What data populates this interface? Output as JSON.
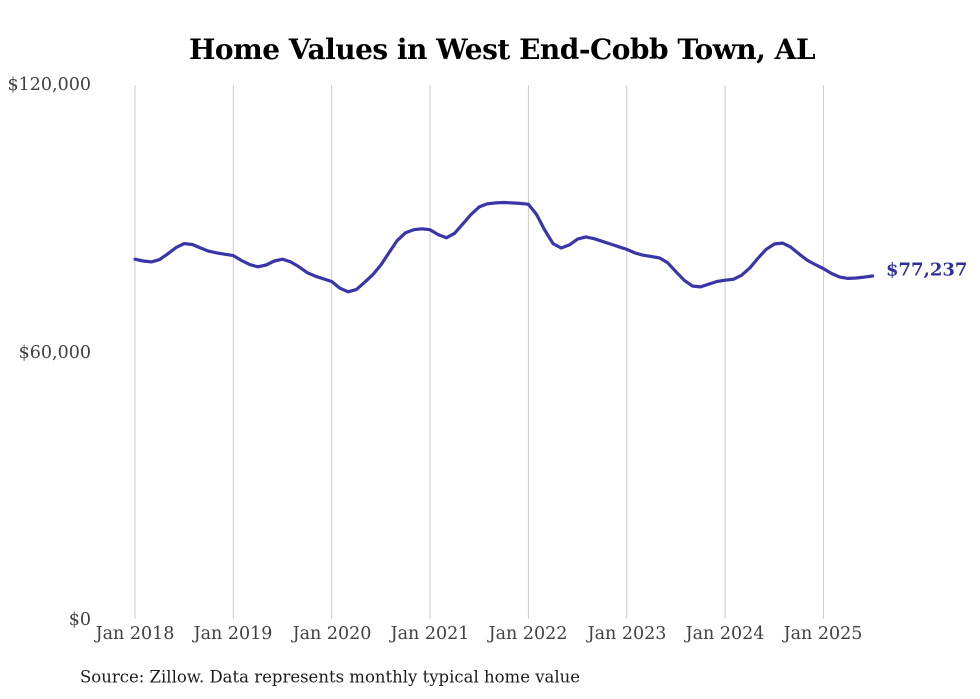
{
  "chart": {
    "title": "Home Values in West End-Cobb Town, AL",
    "current_value_label": "$77,237",
    "source": "Source: Zillow. Data represents monthly typical home value",
    "y_ticks": [
      {
        "label": "$120,000",
        "value": 120000
      },
      {
        "label": "$60,000",
        "value": 60000
      },
      {
        "label": "$0",
        "value": 0
      }
    ],
    "x_ticks": [
      "Jan 2018",
      "Jan 2019",
      "Jan 2020",
      "Jan 2021",
      "Jan 2022",
      "Jan 2023",
      "Jan 2024",
      "Jan 2025"
    ],
    "colors": {
      "line": "#3a35a8",
      "value_label": "#2f2fa2",
      "gridline": "#cccccc",
      "tick_text": "#414141",
      "title_text": "#000000",
      "source_text": "#1c1c1c"
    }
  },
  "chart_data": {
    "type": "line",
    "title": "Home Values in West End-Cobb Town, AL",
    "xlabel": "",
    "ylabel": "",
    "ylim": [
      0,
      120000
    ],
    "y_tick_values": [
      0,
      60000,
      120000
    ],
    "x_tick_labels": [
      "Jan 2018",
      "Jan 2019",
      "Jan 2020",
      "Jan 2021",
      "Jan 2022",
      "Jan 2023",
      "Jan 2024",
      "Jan 2025"
    ],
    "grid": "vertical-only",
    "legend": "none",
    "frequency": "monthly",
    "series_name": "Typical home value",
    "final_value": 77237,
    "end_label": "$77,237",
    "x": [
      "2018-01",
      "2018-02",
      "2018-03",
      "2018-04",
      "2018-05",
      "2018-06",
      "2018-07",
      "2018-08",
      "2018-09",
      "2018-10",
      "2018-11",
      "2018-12",
      "2019-01",
      "2019-02",
      "2019-03",
      "2019-04",
      "2019-05",
      "2019-06",
      "2019-07",
      "2019-08",
      "2019-09",
      "2019-10",
      "2019-11",
      "2019-12",
      "2020-01",
      "2020-02",
      "2020-03",
      "2020-04",
      "2020-05",
      "2020-06",
      "2020-07",
      "2020-08",
      "2020-09",
      "2020-10",
      "2020-11",
      "2020-12",
      "2021-01",
      "2021-02",
      "2021-03",
      "2021-04",
      "2021-05",
      "2021-06",
      "2021-07",
      "2021-08",
      "2021-09",
      "2021-10",
      "2021-11",
      "2021-12",
      "2022-01",
      "2022-02",
      "2022-03",
      "2022-04",
      "2022-05",
      "2022-06",
      "2022-07",
      "2022-08",
      "2022-09",
      "2022-10",
      "2022-11",
      "2022-12",
      "2023-01",
      "2023-02",
      "2023-03",
      "2023-04",
      "2023-05",
      "2023-06",
      "2023-07",
      "2023-08",
      "2023-09",
      "2023-10",
      "2023-11",
      "2023-12",
      "2024-01",
      "2024-02",
      "2024-03",
      "2024-04",
      "2024-05",
      "2024-06",
      "2024-07",
      "2024-08",
      "2024-09",
      "2024-10",
      "2024-11",
      "2024-12",
      "2025-01",
      "2025-02",
      "2025-03",
      "2025-04",
      "2025-05",
      "2025-06",
      "2025-07"
    ],
    "values": [
      81000,
      80600,
      80400,
      80900,
      82200,
      83600,
      84500,
      84300,
      83500,
      82800,
      82400,
      82100,
      81800,
      80700,
      79800,
      79300,
      79700,
      80600,
      81000,
      80400,
      79300,
      78000,
      77200,
      76600,
      76000,
      74500,
      73700,
      74200,
      75800,
      77500,
      79700,
      82500,
      85200,
      86900,
      87600,
      87800,
      87600,
      86500,
      85800,
      86800,
      88900,
      91000,
      92700,
      93400,
      93600,
      93700,
      93600,
      93500,
      93300,
      91000,
      87500,
      84500,
      83500,
      84200,
      85500,
      86000,
      85600,
      85000,
      84400,
      83800,
      83200,
      82400,
      81900,
      81600,
      81300,
      80200,
      78200,
      76300,
      75000,
      74800,
      75400,
      76000,
      76300,
      76500,
      77400,
      79000,
      81200,
      83200,
      84400,
      84600,
      83700,
      82200,
      80800,
      79800,
      78900,
      77800,
      77000,
      76700,
      76800,
      77000,
      77237
    ]
  }
}
